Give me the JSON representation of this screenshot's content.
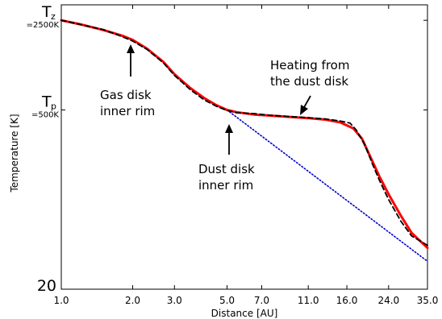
{
  "chart_data": {
    "type": "line",
    "xlabel": "Distance [AU]",
    "ylabel": "Temperature [K]",
    "x_scale": "log",
    "y_scale": "log",
    "xlim": [
      1.0,
      35.0
    ],
    "ylim": [
      20,
      3300
    ],
    "x_ticks": [
      "1.0",
      "2.0",
      "3.0",
      "5.0",
      "7.0",
      "11.0",
      "16.0",
      "24.0",
      "35.0"
    ],
    "y_ticks": [
      {
        "main": "T",
        "sub": "z",
        "value_label": "=2500K",
        "value": 2500
      },
      {
        "main": "T",
        "sub": "p",
        "value_label": "=500K",
        "value": 500
      },
      {
        "main": "20",
        "sub": "",
        "value_label": "",
        "value": 20
      }
    ],
    "grid": false,
    "series": [
      {
        "style": "solid",
        "color": "#ff0000",
        "x": [
          1.0,
          1.2,
          1.5,
          1.8,
          2.0,
          2.3,
          2.7,
          3.0,
          3.5,
          4.0,
          4.5,
          5.0,
          5.5,
          6.5,
          7.5,
          9.0,
          11.0,
          13.0,
          15.0,
          17.0,
          18.5,
          20.0,
          22.0,
          24.0,
          27.0,
          30.0,
          35.0
        ],
        "y": [
          2500,
          2330,
          2100,
          1900,
          1760,
          1500,
          1180,
          950,
          740,
          620,
          545,
          500,
          480,
          460,
          452,
          442,
          432,
          420,
          400,
          360,
          300,
          220,
          150,
          110,
          75,
          55,
          42
        ]
      },
      {
        "style": "dashed",
        "color": "#000000",
        "x": [
          1.0,
          1.2,
          1.5,
          1.8,
          2.0,
          2.3,
          2.7,
          3.0,
          3.5,
          4.0,
          4.5,
          5.0,
          5.5,
          6.5,
          7.5,
          9.0,
          11.0,
          13.0,
          15.0,
          16.5,
          17.5,
          19.0,
          20.5,
          22.0,
          24.0,
          27.0,
          30.0,
          35.0
        ],
        "y": [
          2500,
          2320,
          2120,
          1870,
          1720,
          1480,
          1160,
          930,
          720,
          600,
          535,
          495,
          475,
          468,
          455,
          445,
          435,
          425,
          410,
          395,
          350,
          270,
          190,
          140,
          100,
          68,
          52,
          44
        ]
      },
      {
        "style": "dotted",
        "color": "#0000cc",
        "x": [
          5.0,
          35.0
        ],
        "y": [
          500,
          33
        ]
      }
    ],
    "annotations": [
      {
        "lines": [
          "Gas disk",
          "inner rim"
        ]
      },
      {
        "lines": [
          "Heating from",
          "the dust disk"
        ]
      },
      {
        "lines": [
          "Dust disk",
          "inner rim"
        ]
      }
    ]
  }
}
